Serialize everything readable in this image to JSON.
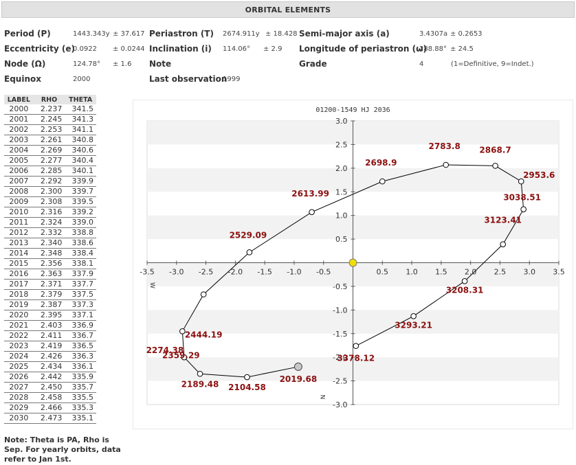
{
  "title": "ORBITAL ELEMENTS",
  "elements": {
    "period_label": "Period (P)",
    "period_value": "1443.343y",
    "period_err": "± 37.617",
    "periastron_label": "Periastron (T)",
    "periastron_value": "2674.911y",
    "periastron_err": "± 18.428",
    "semimajor_label": "Semi-major axis (a)",
    "semimajor_value": "3.4307a",
    "semimajor_err": "± 0.2653",
    "ecc_label": "Eccentricity (e)",
    "ecc_value": "0.0922",
    "ecc_err": "± 0.0244",
    "incl_label": "Inclination (i)",
    "incl_value": "114.06°",
    "incl_err": "± 2.9",
    "lon_label": "Longitude of periastron (ω)",
    "lon_value": "288.88°",
    "lon_err": "± 24.5",
    "node_label": "Node (Ω)",
    "node_value": "124.78°",
    "node_err": "± 1.6",
    "note_label": "Note",
    "grade_label": "Grade",
    "grade_value": "4",
    "grade_desc": "(1=Definitive, 9=Indet.)",
    "equinox_label": "Equinox",
    "equinox_value": "2000",
    "lastobs_label": "Last observation",
    "lastobs_value": "1999"
  },
  "ephemeris": {
    "headers": [
      "LABEL",
      "RHO",
      "THETA"
    ],
    "rows": [
      [
        "2000",
        "2.237",
        "341.5"
      ],
      [
        "2001",
        "2.245",
        "341.3"
      ],
      [
        "2002",
        "2.253",
        "341.1"
      ],
      [
        "2003",
        "2.261",
        "340.8"
      ],
      [
        "2004",
        "2.269",
        "340.6"
      ],
      [
        "2005",
        "2.277",
        "340.4"
      ],
      [
        "2006",
        "2.285",
        "340.1"
      ],
      [
        "2007",
        "2.292",
        "339.9"
      ],
      [
        "2008",
        "2.300",
        "339.7"
      ],
      [
        "2009",
        "2.308",
        "339.5"
      ],
      [
        "2010",
        "2.316",
        "339.2"
      ],
      [
        "2011",
        "2.324",
        "339.0"
      ],
      [
        "2012",
        "2.332",
        "338.8"
      ],
      [
        "2013",
        "2.340",
        "338.6"
      ],
      [
        "2014",
        "2.348",
        "338.4"
      ],
      [
        "2015",
        "2.356",
        "338.1"
      ],
      [
        "2016",
        "2.363",
        "337.9"
      ],
      [
        "2017",
        "2.371",
        "337.7"
      ],
      [
        "2018",
        "2.379",
        "337.5"
      ],
      [
        "2019",
        "2.387",
        "337.3"
      ],
      [
        "2020",
        "2.395",
        "337.1"
      ],
      [
        "2021",
        "2.403",
        "336.9"
      ],
      [
        "2022",
        "2.411",
        "336.7"
      ],
      [
        "2023",
        "2.419",
        "336.5"
      ],
      [
        "2024",
        "2.426",
        "336.3"
      ],
      [
        "2025",
        "2.434",
        "336.1"
      ],
      [
        "2026",
        "2.442",
        "335.9"
      ],
      [
        "2027",
        "2.450",
        "335.7"
      ],
      [
        "2028",
        "2.458",
        "335.5"
      ],
      [
        "2029",
        "2.466",
        "335.3"
      ],
      [
        "2030",
        "2.473",
        "335.1"
      ]
    ]
  },
  "note": "Note: Theta is PA, Rho is Sep. For yearly orbits, data refer to Jan 1st.",
  "chart_data": {
    "type": "line",
    "title": "01200-1549 HJ 2036",
    "xlim": [
      -3.5,
      3.5
    ],
    "ylim": [
      -3.0,
      3.0
    ],
    "x_ticks": [
      "-3.5",
      "-3.0",
      "-2.5",
      "-2.0",
      "-1.5",
      "-1.0",
      "-0.5",
      "0.5",
      "1.0",
      "1.5",
      "2.0",
      "2.5",
      "3.0",
      "3.5"
    ],
    "y_ticks": [
      "3.0",
      "2.5",
      "2.0",
      "1.5",
      "1.0",
      "0.5",
      "-0.5",
      "-1.0",
      "-1.5",
      "-2.0",
      "-2.5",
      "-3.0"
    ],
    "x_axis_label": "W",
    "y_axis_label": "N",
    "grid": "horizontal bands",
    "colors": {
      "line": "#000000",
      "labels": "#8b1010",
      "primary": "#f0e000",
      "current": "#c8c8c8",
      "band": "#f2f2f2"
    },
    "primary": {
      "x": 0,
      "y": 0
    },
    "current_position": {
      "label": "2019.68",
      "x": -0.93,
      "y": -2.2
    },
    "orbit": [
      {
        "label": "2019.68",
        "x": -0.93,
        "y": -2.2
      },
      {
        "label": "2104.58",
        "x": -1.8,
        "y": -2.42
      },
      {
        "label": "2189.48",
        "x": -2.6,
        "y": -2.35
      },
      {
        "label": "2274.38",
        "x": -2.87,
        "y": -2.0
      },
      {
        "label": "2359.29",
        "x": -2.9,
        "y": -1.45
      },
      {
        "label": "2444.19",
        "x": -2.54,
        "y": -0.67
      },
      {
        "label": "2529.09",
        "x": -1.76,
        "y": 0.22
      },
      {
        "label": "2613.99",
        "x": -0.7,
        "y": 1.07
      },
      {
        "label": "2698.9",
        "x": 0.5,
        "y": 1.72
      },
      {
        "label": "2783.8",
        "x": 1.58,
        "y": 2.07
      },
      {
        "label": "2868.7",
        "x": 2.42,
        "y": 2.05
      },
      {
        "label": "2953.6",
        "x": 2.86,
        "y": 1.72
      },
      {
        "label": "3038.51",
        "x": 2.9,
        "y": 1.13
      },
      {
        "label": "3123.41",
        "x": 2.55,
        "y": 0.39
      },
      {
        "label": "3208.31",
        "x": 1.9,
        "y": -0.39
      },
      {
        "label": "3293.21",
        "x": 1.03,
        "y": -1.13
      },
      {
        "label": "3378.12",
        "x": 0.05,
        "y": -1.76
      }
    ]
  }
}
